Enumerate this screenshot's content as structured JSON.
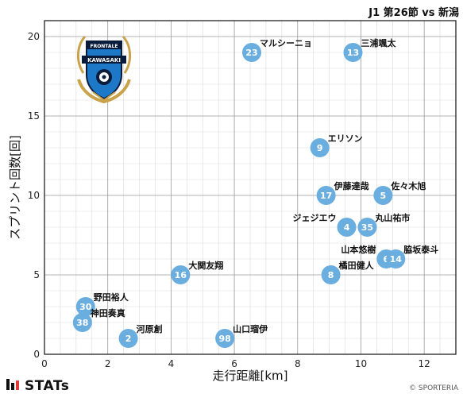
{
  "header": {
    "title": "J1 第26節 vs 新潟"
  },
  "footer": {
    "brand": "STATs",
    "copyright": "© SPORTERIA"
  },
  "crest": {
    "top_text": "FRONTALE",
    "band_text": "KAWASAKI",
    "primary": "#1e78c8",
    "dark": "#0a1c3c",
    "gold": "#c9a24a"
  },
  "colors": {
    "point": "#6aaee0",
    "grid_major": "#9a9a9a",
    "grid_minor": "#dadada",
    "axis": "#111111"
  },
  "chart_data": {
    "type": "scatter",
    "title": "J1 第26節 vs 新潟",
    "xlabel": "走行距離[km]",
    "ylabel": "スプリント回数[回]",
    "xlim": [
      0,
      13
    ],
    "ylim": [
      0,
      21
    ],
    "xticks": [
      0,
      2,
      4,
      6,
      8,
      10,
      12
    ],
    "yticks": [
      0,
      5,
      10,
      15,
      20
    ],
    "grid": true,
    "points": [
      {
        "number": "23",
        "name": "マルシーニョ",
        "x": 6.55,
        "y": 19
      },
      {
        "number": "13",
        "name": "三浦颯太",
        "x": 9.75,
        "y": 19
      },
      {
        "number": "9",
        "name": "エリソン",
        "x": 8.7,
        "y": 13
      },
      {
        "number": "17",
        "name": "伊藤達哉",
        "x": 8.9,
        "y": 10
      },
      {
        "number": "5",
        "name": "佐々木旭",
        "x": 10.7,
        "y": 10
      },
      {
        "number": "4",
        "name": "ジェジエウ",
        "x": 9.55,
        "y": 8
      },
      {
        "number": "35",
        "name": "丸山祐市",
        "x": 10.2,
        "y": 8
      },
      {
        "number": "6",
        "name": "山本悠樹",
        "x": 10.8,
        "y": 6
      },
      {
        "number": "14",
        "name": "脇坂泰斗",
        "x": 11.1,
        "y": 6
      },
      {
        "number": "16",
        "name": "大関友翔",
        "x": 4.3,
        "y": 5
      },
      {
        "number": "8",
        "name": "橘田健人",
        "x": 9.05,
        "y": 5
      },
      {
        "number": "30",
        "name": "野田裕人",
        "x": 1.3,
        "y": 3
      },
      {
        "number": "38",
        "name": "神田奏真",
        "x": 1.2,
        "y": 2
      },
      {
        "number": "2",
        "name": "河原創",
        "x": 2.65,
        "y": 1
      },
      {
        "number": "98",
        "name": "山口瑠伊",
        "x": 5.7,
        "y": 1
      }
    ]
  }
}
